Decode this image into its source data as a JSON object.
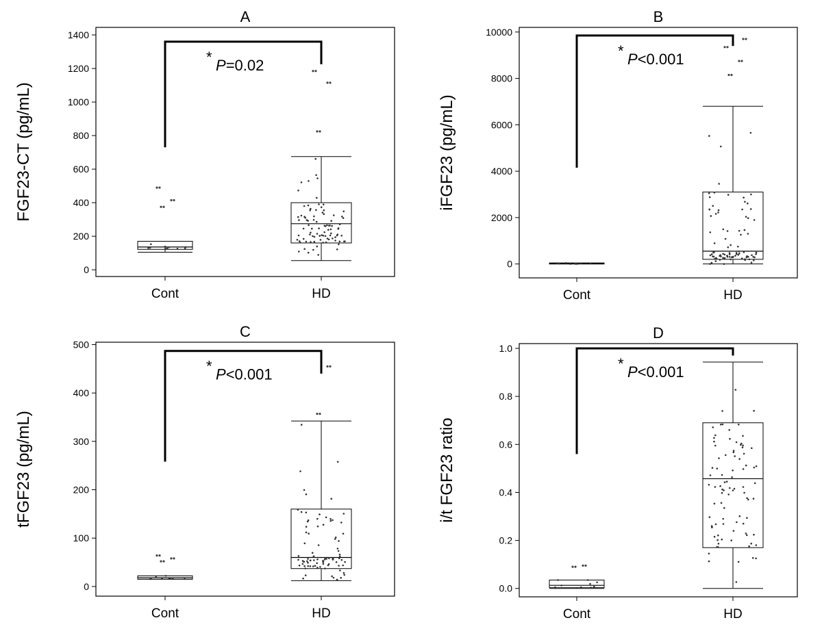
{
  "chart_data": [
    {
      "panel": "A",
      "type": "boxplot",
      "title": "A",
      "ylabel": "FGF23-CT (pg/mL)",
      "categories": [
        "Cont",
        "HD"
      ],
      "ylim": [
        -40,
        1445
      ],
      "yticks": [
        0,
        200,
        400,
        600,
        800,
        1000,
        1200,
        1400
      ],
      "ytick_labels": [
        "0",
        "200",
        "400",
        "600",
        "800",
        "1000",
        "1200",
        "1400"
      ],
      "boxes": [
        {
          "name": "Cont",
          "min": 105,
          "q1": 122,
          "median": 136,
          "q3": 170,
          "max": 170
        },
        {
          "name": "HD",
          "min": 55,
          "q1": 160,
          "median": 275,
          "q3": 400,
          "max": 675
        }
      ],
      "outliers": [
        {
          "group": "Cont",
          "values": [
            375,
            415,
            490
          ]
        },
        {
          "group": "HD",
          "values": [
            825,
            1115,
            1185
          ]
        }
      ],
      "significance": {
        "prefix": "*",
        "p_symbol": "P",
        "p_text": "=0.02",
        "bracket_top": 1360,
        "left_end": 730,
        "right_end": 1225
      }
    },
    {
      "panel": "B",
      "type": "boxplot",
      "title": "B",
      "ylabel": "iFGF23 (pg/mL)",
      "categories": [
        "Cont",
        "HD"
      ],
      "ylim": [
        -600,
        10200
      ],
      "yticks": [
        0,
        2000,
        4000,
        6000,
        8000,
        10000
      ],
      "ytick_labels": [
        "0",
        "2000",
        "4000",
        "6000",
        "8000",
        "10000"
      ],
      "boxes": [
        {
          "name": "Cont",
          "min": 0,
          "q1": 0,
          "median": 20,
          "q3": 40,
          "max": 40
        },
        {
          "name": "HD",
          "min": 0,
          "q1": 200,
          "median": 550,
          "q3": 3100,
          "max": 6800
        }
      ],
      "outliers": [
        {
          "group": "HD",
          "values": [
            8150,
            8750,
            9350,
            9700
          ]
        }
      ],
      "significance": {
        "prefix": "*",
        "p_symbol": "P",
        "p_text": "<0.001",
        "bracket_top": 9850,
        "left_end": 4150,
        "right_end": 9400
      }
    },
    {
      "panel": "C",
      "type": "boxplot",
      "title": "C",
      "ylabel": "tFGF23 (pg/mL)",
      "categories": [
        "Cont",
        "HD"
      ],
      "ylim": [
        -20,
        505
      ],
      "yticks": [
        0,
        100,
        200,
        300,
        400,
        500
      ],
      "ytick_labels": [
        "0",
        "100",
        "200",
        "300",
        "400",
        "500"
      ],
      "boxes": [
        {
          "name": "Cont",
          "min": 15,
          "q1": 15,
          "median": 18,
          "q3": 22,
          "max": 22
        },
        {
          "name": "HD",
          "min": 12,
          "q1": 37,
          "median": 60,
          "q3": 160,
          "max": 342
        }
      ],
      "outliers": [
        {
          "group": "Cont",
          "values": [
            52,
            58,
            64
          ]
        },
        {
          "group": "HD",
          "values": [
            357,
            455
          ]
        }
      ],
      "significance": {
        "prefix": "*",
        "p_symbol": "P",
        "p_text": "<0.001",
        "bracket_top": 487,
        "left_end": 258,
        "right_end": 440
      }
    },
    {
      "panel": "D",
      "type": "boxplot",
      "title": "D",
      "ylabel": "i/t FGF23 ratio",
      "categories": [
        "Cont",
        "HD"
      ],
      "ylim": [
        -0.035,
        1.02
      ],
      "yticks": [
        0.0,
        0.2,
        0.4,
        0.6,
        0.8,
        1.0
      ],
      "ytick_labels": [
        "0.0",
        "0.2",
        "0.4",
        "0.6",
        "0.8",
        "1.0"
      ],
      "boxes": [
        {
          "name": "Cont",
          "min": 0.0,
          "q1": 0.003,
          "median": 0.013,
          "q3": 0.035,
          "max": 0.035
        },
        {
          "name": "HD",
          "min": 0.0,
          "q1": 0.17,
          "median": 0.457,
          "q3": 0.69,
          "max": 0.943
        }
      ],
      "outliers": [
        {
          "group": "Cont",
          "values": [
            0.09,
            0.095
          ]
        }
      ],
      "significance": {
        "prefix": "*",
        "p_symbol": "P",
        "p_text": "<0.001",
        "bracket_top": 1.0,
        "left_end": 0.56,
        "right_end": 0.97
      }
    }
  ]
}
